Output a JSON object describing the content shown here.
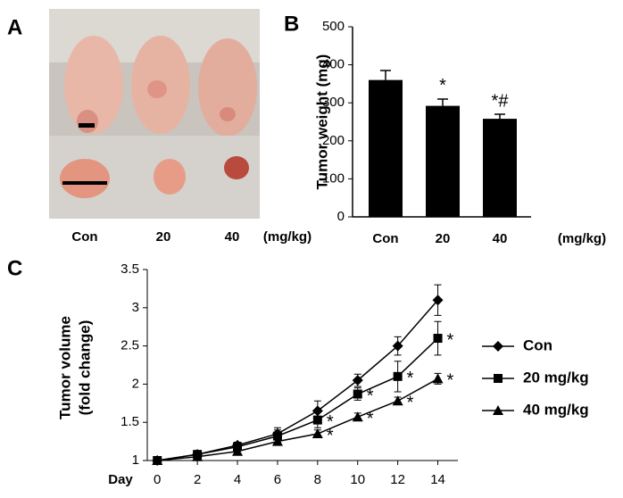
{
  "panel_a": {
    "label": "A",
    "categories": [
      "Con",
      "20",
      "40"
    ],
    "unit_label": "(mg/kg)"
  },
  "chart_data": [
    {
      "type": "bar",
      "panel": "B",
      "ylabel": "Tumor weight (mg)",
      "categories": [
        "Con",
        "20",
        "40"
      ],
      "x_unit_label": "(mg/kg)",
      "values": [
        360,
        292,
        258
      ],
      "errors": [
        25,
        18,
        12
      ],
      "markers": [
        null,
        "*",
        "*#"
      ],
      "color": "#000000",
      "ylim": [
        0,
        500
      ],
      "yticks": [
        0,
        100,
        200,
        300,
        400,
        500
      ]
    },
    {
      "type": "line",
      "panel": "C",
      "ylabel": [
        "Tumor volume",
        "(fold change)"
      ],
      "xlabel": "Day",
      "x": [
        0,
        2,
        4,
        6,
        8,
        10,
        12,
        14
      ],
      "xlim": [
        -0.5,
        15
      ],
      "xticks": [
        0,
        2,
        4,
        6,
        8,
        10,
        12,
        14
      ],
      "ylim": [
        1,
        3.5
      ],
      "yticks": [
        1,
        1.5,
        2,
        2.5,
        3,
        3.5
      ],
      "series": [
        {
          "name": "Con",
          "color": "#000000",
          "marker": "diamond",
          "values": [
            1,
            1.08,
            1.2,
            1.35,
            1.65,
            2.05,
            2.5,
            3.1
          ],
          "errors": [
            0,
            0.03,
            0.04,
            0.08,
            0.13,
            0.08,
            0.12,
            0.2
          ],
          "significance": [
            null,
            null,
            null,
            null,
            null,
            null,
            null,
            null
          ]
        },
        {
          "name": "20 mg/kg",
          "color": "#000000",
          "marker": "square",
          "values": [
            1,
            1.08,
            1.18,
            1.32,
            1.53,
            1.87,
            2.1,
            2.6
          ],
          "errors": [
            0,
            0.03,
            0.03,
            0.08,
            0.1,
            0.08,
            0.2,
            0.22
          ],
          "significance": [
            null,
            null,
            null,
            null,
            "*",
            "*",
            "*",
            "*"
          ]
        },
        {
          "name": "40 mg/kg",
          "color": "#000000",
          "marker": "triangle",
          "values": [
            1,
            1.05,
            1.12,
            1.25,
            1.35,
            1.57,
            1.78,
            2.07
          ],
          "errors": [
            0,
            0.02,
            0.03,
            0.05,
            0.05,
            0.05,
            0.05,
            0.07
          ],
          "significance": [
            null,
            null,
            null,
            null,
            "*",
            "*",
            "*",
            "*"
          ]
        }
      ]
    }
  ]
}
